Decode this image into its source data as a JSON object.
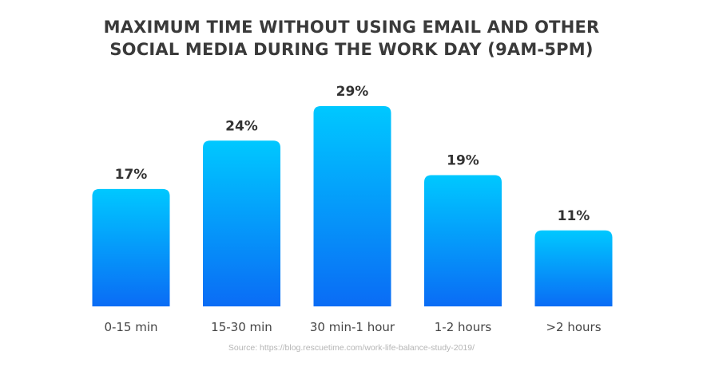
{
  "title": {
    "line1": "MAXIMUM TIME WITHOUT USING EMAIL AND OTHER",
    "line2": "SOCIAL MEDIA DURING THE WORK DAY (9AM-5PM)"
  },
  "source": "Source: https://blog.rescuetime.com/work-life-balance-study-2019/",
  "colors": {
    "bar_top": "#00c8ff",
    "bar_bottom": "#0a6cf5",
    "value_label": "#333333",
    "category_label": "#444444"
  },
  "chart_data": {
    "type": "bar",
    "title": "MAXIMUM TIME WITHOUT USING EMAIL AND OTHER SOCIAL MEDIA DURING THE WORK DAY (9AM-5PM)",
    "categories": [
      "0-15 min",
      "15-30 min",
      "30 min-1 hour",
      "1-2 hours",
      ">2 hours"
    ],
    "values": [
      17,
      24,
      29,
      19,
      11
    ],
    "value_labels": [
      "17%",
      "24%",
      "29%",
      "19%",
      "11%"
    ],
    "xlabel": "",
    "ylabel": "",
    "ylim": [
      0,
      29
    ],
    "grid": false,
    "legend": "none"
  }
}
